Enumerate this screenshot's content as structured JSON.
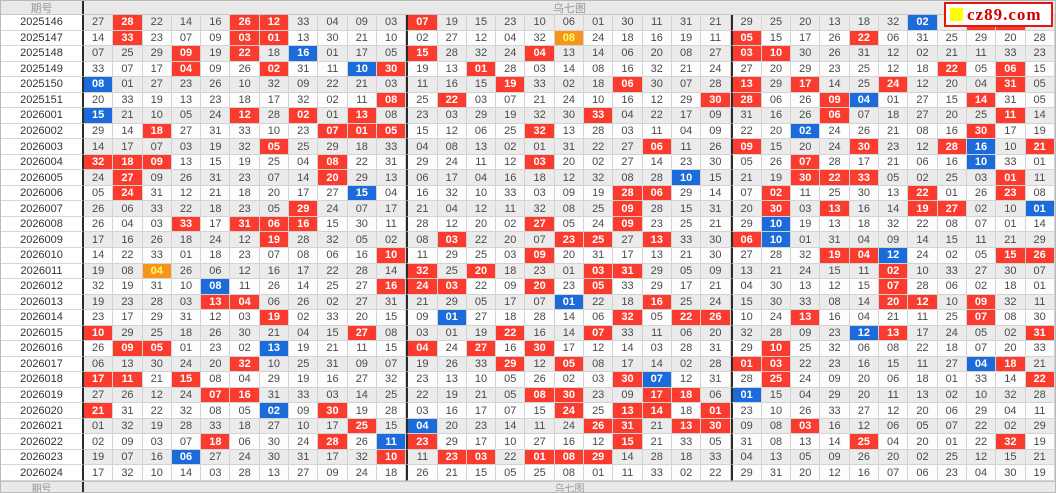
{
  "header": {
    "issue_label": "期号",
    "title": "乌七图"
  },
  "footer": {
    "issue_label": "期号",
    "title": "乌七图"
  },
  "logo": {
    "text": "cz89.com",
    "square_icon": "yellow-square",
    "border_color": "#e3170d",
    "text_color": "#d40000"
  },
  "colors": {
    "red_ball": "#fa3b2e",
    "blue_ball": "#1c6bdb",
    "orange_ball": "#f7941e",
    "row_even": "#ebebeb",
    "row_odd": "#fdfdfd",
    "zone_divider": "#2a2a2a"
  },
  "legend": {
    "r": "red-highlight",
    "b": "blue-highlight",
    "o": "orange-highlight"
  },
  "rows": [
    {
      "issue": "2025146",
      "cells": [
        "27",
        "28:r",
        "22",
        "14",
        "16",
        "26:r",
        "12:r",
        "33",
        "04",
        "09",
        "03",
        "07:r",
        "19",
        "15",
        "23",
        "10",
        "06",
        "01",
        "30",
        "11",
        "31",
        "21",
        "29",
        "25",
        "20",
        "13",
        "18",
        "32",
        "02:b",
        "17",
        "24:r",
        "05:r",
        "08"
      ]
    },
    {
      "issue": "2025147",
      "cells": [
        "14",
        "33:r",
        "23",
        "07",
        "09",
        "03:r",
        "01:r",
        "13",
        "30",
        "21",
        "10",
        "02",
        "27",
        "12",
        "04",
        "32",
        "08:o",
        "24",
        "18",
        "16",
        "19",
        "11",
        "05:r",
        "15",
        "17",
        "26",
        "22:r",
        "06",
        "31",
        "25",
        "29",
        "20",
        "28"
      ]
    },
    {
      "issue": "2025148",
      "cells": [
        "07",
        "25",
        "29",
        "09:r",
        "19",
        "22:r",
        "18",
        "16:b",
        "01",
        "17",
        "05",
        "15:r",
        "28",
        "32",
        "24",
        "04:r",
        "13",
        "14",
        "06",
        "20",
        "08",
        "27",
        "03:r",
        "10:r",
        "30",
        "26",
        "31",
        "12",
        "02",
        "21",
        "11",
        "33",
        "23"
      ]
    },
    {
      "issue": "2025149",
      "cells": [
        "33",
        "07",
        "17",
        "04:r",
        "09",
        "26",
        "02:r",
        "31",
        "11",
        "10:b",
        "30:r",
        "19",
        "13",
        "01:r",
        "28",
        "03",
        "14",
        "08",
        "16",
        "32",
        "21",
        "24",
        "27",
        "20",
        "29",
        "23",
        "25",
        "12",
        "18",
        "22:r",
        "05",
        "06:r",
        "15"
      ]
    },
    {
      "issue": "2025150",
      "cells": [
        "08:b",
        "01",
        "27",
        "23",
        "26",
        "10",
        "32",
        "09",
        "22",
        "21",
        "03",
        "11",
        "16",
        "15",
        "19:r",
        "33",
        "02",
        "18",
        "06:r",
        "30",
        "07",
        "28",
        "13:r",
        "29",
        "17:r",
        "14",
        "25",
        "24:r",
        "12",
        "20",
        "04",
        "31:r",
        "05"
      ]
    },
    {
      "issue": "2025151",
      "cells": [
        "20",
        "33",
        "19",
        "13",
        "23",
        "18",
        "17",
        "32",
        "02",
        "11",
        "08:r",
        "25",
        "22:r",
        "03",
        "07",
        "21",
        "24",
        "10",
        "16",
        "12",
        "29",
        "30:r",
        "28:r",
        "06",
        "26",
        "09:r",
        "04:b",
        "01",
        "27",
        "15",
        "14:r",
        "31",
        "05"
      ]
    },
    {
      "issue": "2026001",
      "cells": [
        "15:b",
        "21",
        "10",
        "05",
        "24",
        "12:r",
        "28",
        "02:r",
        "01",
        "13:r",
        "08",
        "23",
        "03",
        "29",
        "19",
        "32",
        "30",
        "33:r",
        "04",
        "22",
        "17",
        "09",
        "31",
        "16",
        "26",
        "06:r",
        "07",
        "18",
        "27",
        "20",
        "25",
        "11:r",
        "14"
      ]
    },
    {
      "issue": "2026002",
      "cells": [
        "29",
        "14",
        "18:r",
        "27",
        "31",
        "33",
        "10",
        "23",
        "07:r",
        "01:r",
        "05:r",
        "15",
        "12",
        "06",
        "25",
        "32:r",
        "13",
        "28",
        "03",
        "11",
        "04",
        "09",
        "22",
        "20",
        "02:b",
        "24",
        "26",
        "21",
        "08",
        "16",
        "30:r",
        "17",
        "19"
      ]
    },
    {
      "issue": "2026003",
      "cells": [
        "14",
        "17",
        "07",
        "03",
        "19",
        "32",
        "05:r",
        "25",
        "29",
        "18",
        "33",
        "04",
        "08",
        "13",
        "02",
        "01",
        "31",
        "22",
        "27",
        "06:r",
        "11",
        "26",
        "09:r",
        "15",
        "20",
        "24",
        "30:r",
        "23",
        "12",
        "28:r",
        "16:b",
        "10",
        "21:r"
      ]
    },
    {
      "issue": "2026004",
      "cells": [
        "32:r",
        "18:r",
        "09:r",
        "13",
        "15",
        "19",
        "25",
        "04",
        "08:r",
        "22",
        "31",
        "29",
        "24",
        "11",
        "12",
        "03:r",
        "20",
        "02",
        "27",
        "14",
        "23",
        "30",
        "05",
        "26",
        "07:r",
        "28",
        "17",
        "21",
        "06",
        "16",
        "10:b",
        "33",
        "01"
      ]
    },
    {
      "issue": "2026005",
      "cells": [
        "24",
        "27:r",
        "09",
        "26",
        "31",
        "23",
        "07",
        "14",
        "20:r",
        "29",
        "13",
        "06",
        "17",
        "04",
        "16",
        "18",
        "12",
        "32",
        "08",
        "28",
        "10:b",
        "15",
        "21",
        "19",
        "30:r",
        "22:r",
        "33:r",
        "05",
        "02",
        "25",
        "03",
        "01:r",
        "11"
      ]
    },
    {
      "issue": "2026006",
      "cells": [
        "05",
        "24:r",
        "31",
        "12",
        "21",
        "18",
        "20",
        "17",
        "27",
        "15:b",
        "04",
        "16",
        "32",
        "10",
        "33",
        "03",
        "09",
        "19",
        "28:r",
        "06:r",
        "29",
        "14",
        "07",
        "02:r",
        "11",
        "25",
        "30",
        "13",
        "22:r",
        "01",
        "26",
        "23:r",
        "08"
      ]
    },
    {
      "issue": "2026007",
      "cells": [
        "26",
        "06",
        "33",
        "22",
        "18",
        "23",
        "05",
        "29:r",
        "24",
        "07",
        "17",
        "21",
        "04",
        "12",
        "11",
        "32",
        "08",
        "25",
        "09:r",
        "28",
        "15",
        "31",
        "20",
        "30:r",
        "03",
        "13:r",
        "16",
        "14",
        "19:r",
        "27:r",
        "02",
        "10",
        "01:b"
      ]
    },
    {
      "issue": "2026008",
      "cells": [
        "26",
        "04",
        "03",
        "33:r",
        "17",
        "31:r",
        "06:r",
        "16:r",
        "15",
        "30",
        "11",
        "28",
        "12",
        "20",
        "02",
        "27:r",
        "05",
        "24",
        "09:r",
        "23",
        "25",
        "21",
        "29",
        "10:b",
        "19",
        "13",
        "18",
        "32",
        "22",
        "08",
        "07",
        "01",
        "14"
      ]
    },
    {
      "issue": "2026009",
      "cells": [
        "17",
        "16",
        "26",
        "18",
        "24",
        "12",
        "19:r",
        "28",
        "32",
        "05",
        "02",
        "08",
        "03:r",
        "22",
        "20",
        "07",
        "23:r",
        "25:r",
        "27",
        "13:r",
        "33",
        "30",
        "06:r",
        "10:b",
        "01",
        "31",
        "04",
        "09",
        "14",
        "15",
        "11",
        "21",
        "29"
      ]
    },
    {
      "issue": "2026010",
      "cells": [
        "14",
        "22",
        "33",
        "01",
        "18",
        "23",
        "07",
        "08",
        "06",
        "16",
        "10:r",
        "11",
        "29",
        "25",
        "03",
        "09:r",
        "20",
        "31",
        "17",
        "13",
        "21",
        "30",
        "27",
        "28",
        "32",
        "19:r",
        "04:r",
        "12:b",
        "24",
        "02",
        "05",
        "15:r",
        "26:r"
      ]
    },
    {
      "issue": "2026011",
      "cells": [
        "19",
        "08",
        "04:o",
        "26",
        "06",
        "12",
        "16",
        "17",
        "22",
        "28",
        "14",
        "32:r",
        "25",
        "20:r",
        "18",
        "23",
        "01",
        "03:r",
        "31:r",
        "29",
        "05",
        "09",
        "13",
        "21",
        "24",
        "15",
        "11",
        "02:r",
        "10",
        "33",
        "27",
        "30",
        "07"
      ]
    },
    {
      "issue": "2026012",
      "cells": [
        "32",
        "19",
        "31",
        "10",
        "08:b",
        "11",
        "26",
        "14",
        "25",
        "27",
        "16:r",
        "24:r",
        "03:r",
        "22",
        "09",
        "20:r",
        "23",
        "05:r",
        "33",
        "29",
        "17",
        "21",
        "04",
        "30",
        "13",
        "12",
        "15",
        "07:r",
        "28",
        "06",
        "02",
        "18",
        "01"
      ]
    },
    {
      "issue": "2026013",
      "cells": [
        "19",
        "23",
        "28",
        "03",
        "13:r",
        "04:r",
        "06",
        "26",
        "02",
        "27",
        "31",
        "21",
        "29",
        "05",
        "17",
        "07",
        "01:b",
        "22",
        "18",
        "16:r",
        "25",
        "24",
        "15",
        "30",
        "33",
        "08",
        "14",
        "20:r",
        "12:r",
        "10",
        "09:r",
        "32",
        "11"
      ]
    },
    {
      "issue": "2026014",
      "cells": [
        "23",
        "17",
        "29",
        "31",
        "12",
        "03",
        "19:r",
        "02",
        "33",
        "20",
        "15",
        "09",
        "01:b",
        "27",
        "18",
        "28",
        "14",
        "06",
        "32:r",
        "05",
        "22:r",
        "26:r",
        "10",
        "24",
        "13:r",
        "16",
        "04",
        "21",
        "11",
        "25",
        "07:r",
        "08",
        "30"
      ]
    },
    {
      "issue": "2026015",
      "cells": [
        "10:r",
        "29",
        "25",
        "18",
        "26",
        "30",
        "21",
        "04",
        "15",
        "27:r",
        "08",
        "03",
        "01",
        "19",
        "22:r",
        "16",
        "14",
        "07:r",
        "33",
        "11",
        "06",
        "20",
        "32",
        "28",
        "09",
        "23",
        "12:b",
        "13:r",
        "17",
        "24",
        "05",
        "02",
        "31:r"
      ]
    },
    {
      "issue": "2026016",
      "cells": [
        "26",
        "09:r",
        "05:r",
        "01",
        "23",
        "02",
        "13:b",
        "19",
        "21",
        "11",
        "15",
        "04:r",
        "24",
        "27:r",
        "16",
        "30:r",
        "17",
        "12",
        "14",
        "03",
        "28",
        "31",
        "29",
        "10:r",
        "25",
        "32",
        "06",
        "08",
        "22",
        "18",
        "07",
        "20",
        "33"
      ]
    },
    {
      "issue": "2026017",
      "cells": [
        "06",
        "13",
        "30",
        "24",
        "20",
        "32:r",
        "10",
        "25",
        "31",
        "09",
        "07",
        "19",
        "26",
        "33",
        "29:r",
        "12",
        "05:r",
        "08",
        "17",
        "14",
        "02",
        "28",
        "01:r",
        "03:r",
        "22",
        "23",
        "16",
        "15",
        "11",
        "27",
        "04:b",
        "18:r",
        "21"
      ]
    },
    {
      "issue": "2026018",
      "cells": [
        "17:r",
        "11:r",
        "21",
        "15:r",
        "08",
        "04",
        "29",
        "19",
        "16",
        "27",
        "32",
        "23",
        "13",
        "10",
        "05",
        "26",
        "02",
        "03",
        "30:r",
        "07:b",
        "12",
        "31",
        "28",
        "25:r",
        "24",
        "09",
        "20",
        "06",
        "18",
        "01",
        "33",
        "14",
        "22:r"
      ]
    },
    {
      "issue": "2026019",
      "cells": [
        "27",
        "26",
        "12",
        "24",
        "07:r",
        "16:r",
        "31",
        "33",
        "03",
        "14",
        "25",
        "22",
        "19",
        "21",
        "05",
        "08:r",
        "30:r",
        "23",
        "09",
        "17:r",
        "18:r",
        "06",
        "01:b",
        "15",
        "04",
        "29",
        "20",
        "11",
        "13",
        "02",
        "10",
        "32",
        "28"
      ]
    },
    {
      "issue": "2026020",
      "cells": [
        "21:r",
        "31",
        "22",
        "32",
        "08",
        "05",
        "02:b",
        "09",
        "30:r",
        "19",
        "28",
        "03",
        "16",
        "17",
        "07",
        "15",
        "24:r",
        "25",
        "13:r",
        "14:r",
        "18",
        "01:r",
        "23",
        "10",
        "26",
        "33",
        "27",
        "12",
        "20",
        "06",
        "29",
        "04",
        "11"
      ]
    },
    {
      "issue": "2026021",
      "cells": [
        "01",
        "32",
        "19",
        "28",
        "33",
        "18",
        "27",
        "10",
        "17",
        "25:r",
        "15",
        "04:b",
        "20",
        "23",
        "14",
        "11",
        "24",
        "26:r",
        "31:r",
        "21",
        "13:r",
        "30:r",
        "09",
        "08",
        "03:r",
        "16",
        "12",
        "06",
        "05",
        "07",
        "22",
        "02",
        "29"
      ]
    },
    {
      "issue": "2026022",
      "cells": [
        "02",
        "09",
        "03",
        "07",
        "18:r",
        "06",
        "30",
        "24",
        "28:r",
        "26",
        "11:b",
        "23:r",
        "29",
        "17",
        "10",
        "27",
        "16",
        "12",
        "15:r",
        "21",
        "33",
        "05",
        "31",
        "08",
        "13",
        "14",
        "25:r",
        "04",
        "20",
        "01",
        "22",
        "32:r",
        "19"
      ]
    },
    {
      "issue": "2026023",
      "cells": [
        "19",
        "07",
        "16",
        "06:b",
        "27",
        "24",
        "30",
        "31",
        "17",
        "32",
        "10:r",
        "11",
        "23:r",
        "03:r",
        "22",
        "01:r",
        "08:r",
        "29:r",
        "14",
        "28",
        "18",
        "33",
        "04",
        "13",
        "05",
        "09",
        "26",
        "20",
        "02",
        "25",
        "12",
        "15",
        "21"
      ]
    },
    {
      "issue": "2026024",
      "cells": [
        "17",
        "32",
        "10",
        "14",
        "03",
        "28",
        "13",
        "27",
        "09",
        "24",
        "18",
        "26",
        "21",
        "15",
        "05",
        "25",
        "08",
        "01",
        "11",
        "33",
        "02",
        "22",
        "29",
        "31",
        "20",
        "12",
        "16",
        "07",
        "06",
        "23",
        "04",
        "30",
        "19"
      ]
    }
  ]
}
